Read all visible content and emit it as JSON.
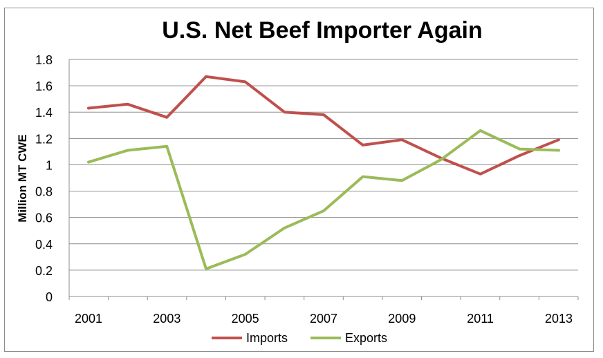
{
  "chart_data": {
    "type": "line",
    "title": "U.S. Net Beef Importer Again",
    "ylabel": "Million MT CWE",
    "xlabel": "",
    "x": [
      2001,
      2002,
      2003,
      2004,
      2005,
      2006,
      2007,
      2008,
      2009,
      2010,
      2011,
      2012,
      2013
    ],
    "x_tick_labels": [
      "2001",
      "2003",
      "2005",
      "2007",
      "2009",
      "2011",
      "2013"
    ],
    "y_tick_labels": [
      "0",
      "0.2",
      "0.4",
      "0.6",
      "0.8",
      "1",
      "1.2",
      "1.4",
      "1.6",
      "1.8"
    ],
    "ylim": [
      0,
      1.8
    ],
    "xlim": [
      2001,
      2013
    ],
    "grid": "horizontal",
    "legend_position": "bottom",
    "series": [
      {
        "name": "Imports",
        "color": "#C0504D",
        "values": [
          1.43,
          1.46,
          1.36,
          1.67,
          1.63,
          1.4,
          1.38,
          1.15,
          1.19,
          1.05,
          0.93,
          1.07,
          1.19
        ]
      },
      {
        "name": "Exports",
        "color": "#9BBB59",
        "values": [
          1.02,
          1.11,
          1.14,
          0.21,
          0.32,
          0.52,
          0.65,
          0.91,
          0.88,
          1.04,
          1.26,
          1.12,
          1.11
        ]
      }
    ]
  }
}
